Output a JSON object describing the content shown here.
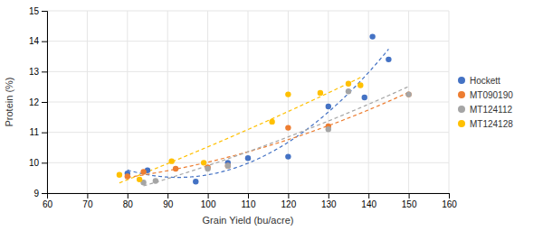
{
  "chart_data": {
    "type": "scatter",
    "xlabel": "Grain Yield (bu/acre)",
    "ylabel": "Protein (%)",
    "xlim": [
      60,
      160
    ],
    "ylim": [
      9,
      15
    ],
    "xticks": [
      60,
      70,
      80,
      90,
      100,
      110,
      120,
      130,
      140,
      150,
      160
    ],
    "yticks": [
      9,
      10,
      11,
      12,
      13,
      14,
      15
    ],
    "grid": true,
    "legend": "right",
    "series": [
      {
        "name": "Hockett",
        "color": "#4472c4",
        "marker": "circle",
        "line_style": "dashed",
        "x": [
          80,
          85,
          97,
          105,
          110,
          120,
          130,
          139,
          141,
          145
        ],
        "values": [
          9.65,
          9.75,
          9.38,
          10.0,
          10.15,
          10.2,
          11.85,
          12.15,
          14.15,
          13.4
        ],
        "trend_coefficients": [
          0.001535398,
          -0.28425968,
          22.67443424
        ]
      },
      {
        "name": "MT090190",
        "color": "#ed7d31",
        "marker": "circle",
        "line_style": "dashed",
        "x": [
          80,
          84,
          92,
          100,
          105,
          120,
          130,
          150
        ],
        "values": [
          9.55,
          9.7,
          9.8,
          9.85,
          9.9,
          11.15,
          11.2,
          12.25
        ],
        "trend_coefficients": [
          0.0002989968,
          -0.02873717,
          9.90203172
        ]
      },
      {
        "name": "MT124112",
        "color": "#a5a5a5",
        "marker": "circle",
        "line_style": "dashed",
        "x": [
          84,
          87,
          100,
          105,
          130,
          135,
          150
        ],
        "values": [
          9.35,
          9.4,
          9.8,
          9.9,
          11.1,
          12.35,
          12.25
        ],
        "trend_coefficients": [
          0.00015904725,
          0.01237858,
          7.07477303
        ]
      },
      {
        "name": "MT124128",
        "color": "#ffc000",
        "marker": "circle",
        "line_style": "dashed",
        "x": [
          78,
          83,
          91,
          99,
          116,
          120,
          128,
          135,
          138
        ],
        "values": [
          9.6,
          9.45,
          10.05,
          10.0,
          11.35,
          12.25,
          12.3,
          12.6,
          12.55
        ],
        "trend_coefficients": [
          0.000104117,
          0.03531892,
          5.94834236
        ]
      }
    ]
  }
}
